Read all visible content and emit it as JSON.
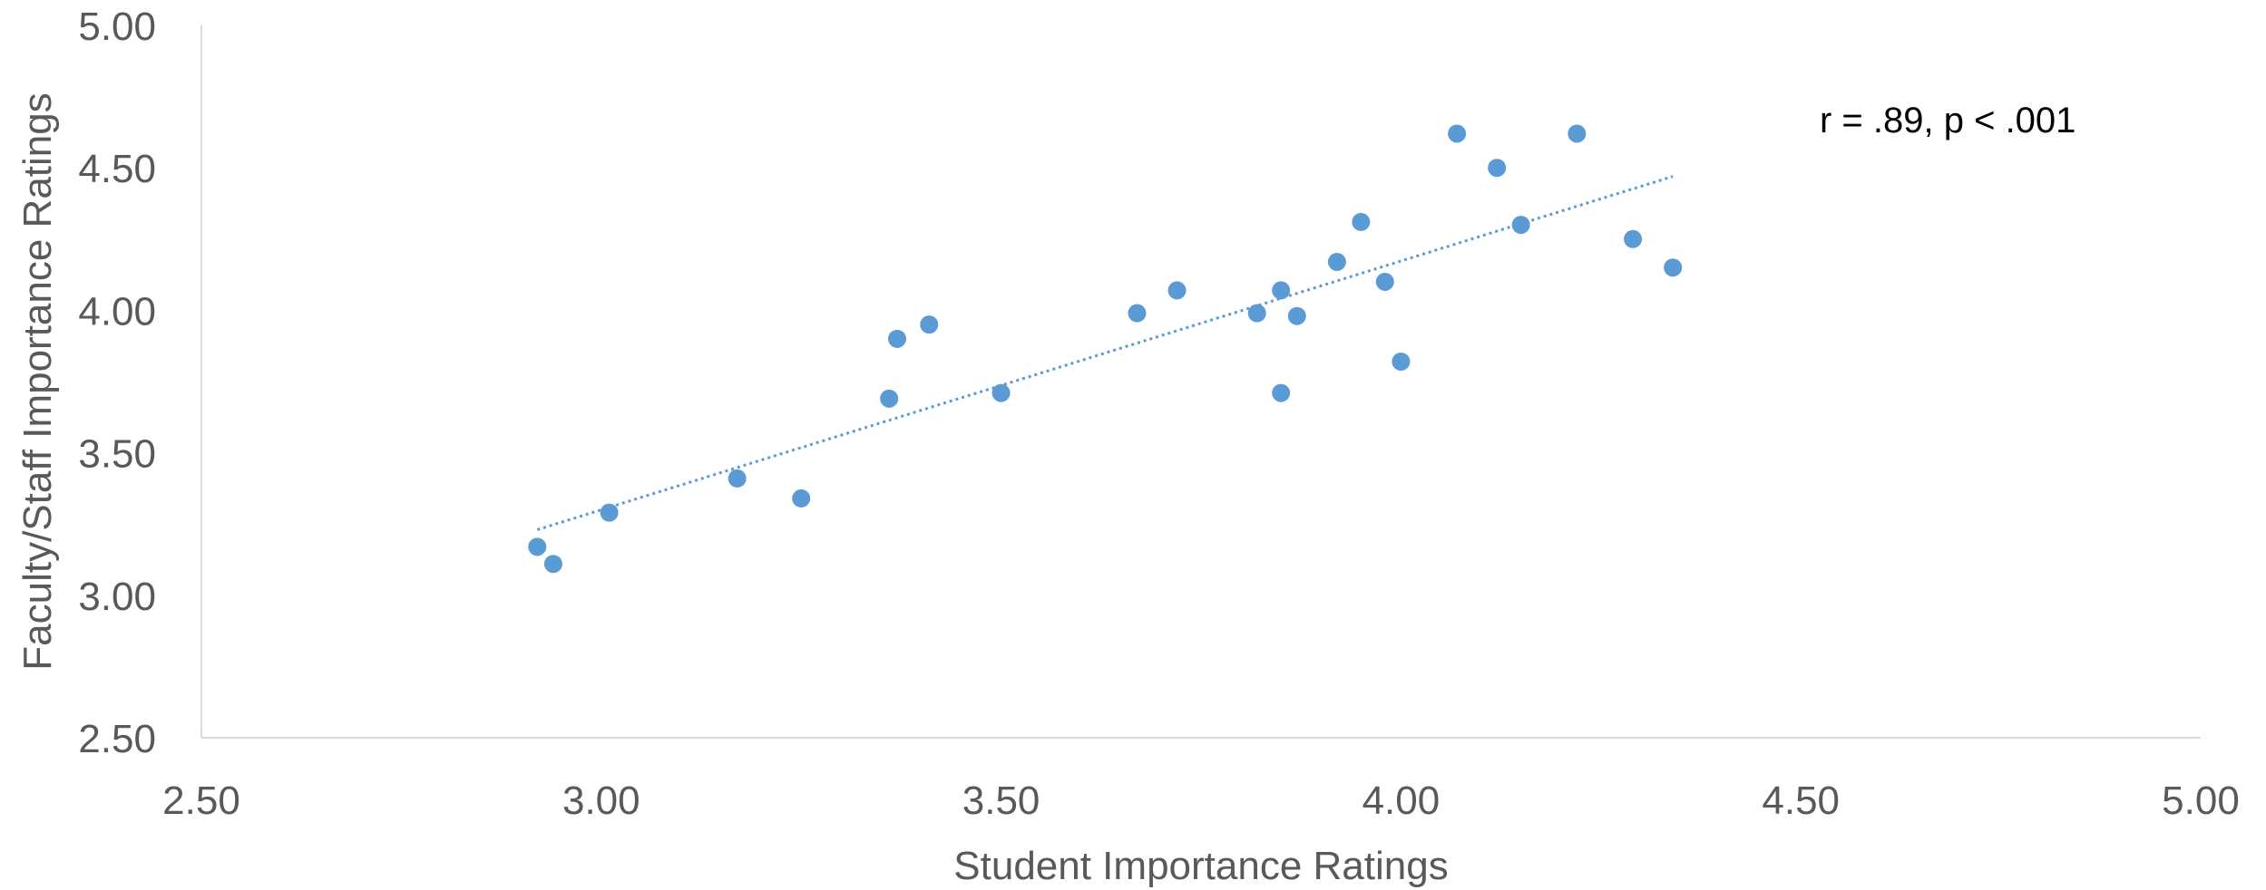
{
  "chart_data": {
    "type": "scatter",
    "title": "",
    "xlabel": "Student Importance Ratings",
    "ylabel": "Faculty/Staff Importance Ratings",
    "xlim": [
      2.5,
      5.0
    ],
    "ylim": [
      2.5,
      5.0
    ],
    "x_ticks": [
      "2.50",
      "3.00",
      "3.50",
      "4.00",
      "4.50",
      "5.00"
    ],
    "y_ticks": [
      "2.50",
      "3.00",
      "3.50",
      "4.00",
      "4.50",
      "5.00"
    ],
    "grid": false,
    "legend": "none",
    "annotation": "r = .89, p < .001",
    "colors": {
      "points": "#5B9BD5",
      "trendline": "#5B9BD5",
      "axis": "#D9D9D9"
    },
    "trendline": {
      "type": "linear",
      "style": "dotted",
      "x": [
        2.92,
        4.34
      ],
      "y": [
        3.23,
        4.47
      ]
    },
    "points": [
      {
        "x": 2.92,
        "y": 3.17
      },
      {
        "x": 2.94,
        "y": 3.11
      },
      {
        "x": 3.01,
        "y": 3.29
      },
      {
        "x": 3.17,
        "y": 3.41
      },
      {
        "x": 3.25,
        "y": 3.34
      },
      {
        "x": 3.36,
        "y": 3.69
      },
      {
        "x": 3.37,
        "y": 3.9
      },
      {
        "x": 3.41,
        "y": 3.95
      },
      {
        "x": 3.5,
        "y": 3.71
      },
      {
        "x": 3.67,
        "y": 3.99
      },
      {
        "x": 3.72,
        "y": 4.07
      },
      {
        "x": 3.82,
        "y": 3.99
      },
      {
        "x": 3.85,
        "y": 4.07
      },
      {
        "x": 3.85,
        "y": 3.71
      },
      {
        "x": 3.87,
        "y": 3.98
      },
      {
        "x": 3.92,
        "y": 4.17
      },
      {
        "x": 3.95,
        "y": 4.31
      },
      {
        "x": 3.98,
        "y": 4.1
      },
      {
        "x": 4.0,
        "y": 3.82
      },
      {
        "x": 4.07,
        "y": 4.62
      },
      {
        "x": 4.12,
        "y": 4.5
      },
      {
        "x": 4.15,
        "y": 4.3
      },
      {
        "x": 4.22,
        "y": 4.62
      },
      {
        "x": 4.29,
        "y": 4.25
      },
      {
        "x": 4.34,
        "y": 4.15
      }
    ]
  }
}
